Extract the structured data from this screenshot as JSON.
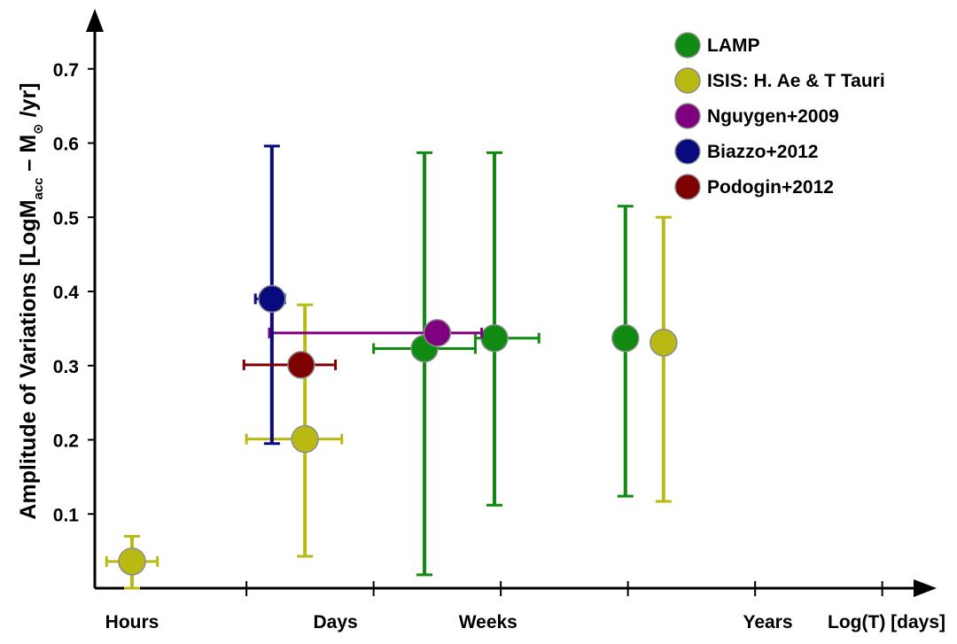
{
  "chart_data": {
    "type": "scatter",
    "title": "",
    "xlabel": "Log(T) [days]",
    "ylabel": {
      "main": "Amplitude of Variations [LogM",
      "sub": "acc",
      "mid": " – M",
      "sun_symbol": "⊙",
      "tail": " /yr]"
    },
    "x_tick_labels": [
      {
        "label": "Hours",
        "x": 1
      },
      {
        "label": "Days",
        "x": 2.6
      },
      {
        "label": "Weeks",
        "x": 3.8
      },
      {
        "label": "Years",
        "x": 6.0
      }
    ],
    "x_tick_marks": [
      1.9,
      2.9,
      3.9,
      4.9,
      5.9,
      6.9
    ],
    "x_range": [
      0.6,
      7.2
    ],
    "ylim": [
      0.0,
      0.77
    ],
    "y_ticks": [
      0.1,
      0.2,
      0.3,
      0.4,
      0.5,
      0.6,
      0.7
    ],
    "grid": false,
    "legend_position": "top-right",
    "series": [
      {
        "name": "LAMP",
        "color": "#108a10",
        "points": [
          {
            "x": 3.3,
            "y": 0.323,
            "x_lo": 2.9,
            "x_hi": 3.7,
            "y_lo": 0.018,
            "y_hi": 0.587
          },
          {
            "x": 3.85,
            "y": 0.337,
            "x_lo": 3.7,
            "x_hi": 4.2,
            "y_lo": 0.112,
            "y_hi": 0.587
          },
          {
            "x": 4.88,
            "y": 0.337,
            "x_lo": null,
            "x_hi": null,
            "y_lo": 0.124,
            "y_hi": 0.515
          }
        ]
      },
      {
        "name": "ISIS: H. Ae & T Tauri",
        "color": "#b9b914",
        "points": [
          {
            "x": 1.0,
            "y": 0.036,
            "x_lo": 0.8,
            "x_hi": 1.2,
            "y_lo": 0.0,
            "y_hi": 0.07
          },
          {
            "x": 2.36,
            "y": 0.201,
            "x_lo": 1.9,
            "x_hi": 2.65,
            "y_lo": 0.043,
            "y_hi": 0.382
          },
          {
            "x": 5.18,
            "y": 0.331,
            "x_lo": null,
            "x_hi": null,
            "y_lo": 0.117,
            "y_hi": 0.5
          }
        ]
      },
      {
        "name": "Nguygen+2009",
        "color": "#7f007f",
        "points": [
          {
            "x": 3.4,
            "y": 0.344,
            "x_lo": 2.08,
            "x_hi": 3.75,
            "y_lo": null,
            "y_hi": null
          }
        ]
      },
      {
        "name": "Biazzo+2012",
        "color": "#0a0a7f",
        "points": [
          {
            "x": 2.1,
            "y": 0.39,
            "x_lo": 1.97,
            "x_hi": 2.2,
            "y_lo": 0.195,
            "y_hi": 0.596
          }
        ]
      },
      {
        "name": "Podogin+2012",
        "color": "#7f0000",
        "points": [
          {
            "x": 2.33,
            "y": 0.301,
            "x_lo": 1.88,
            "x_hi": 2.6,
            "y_lo": null,
            "y_hi": null
          }
        ]
      }
    ]
  }
}
